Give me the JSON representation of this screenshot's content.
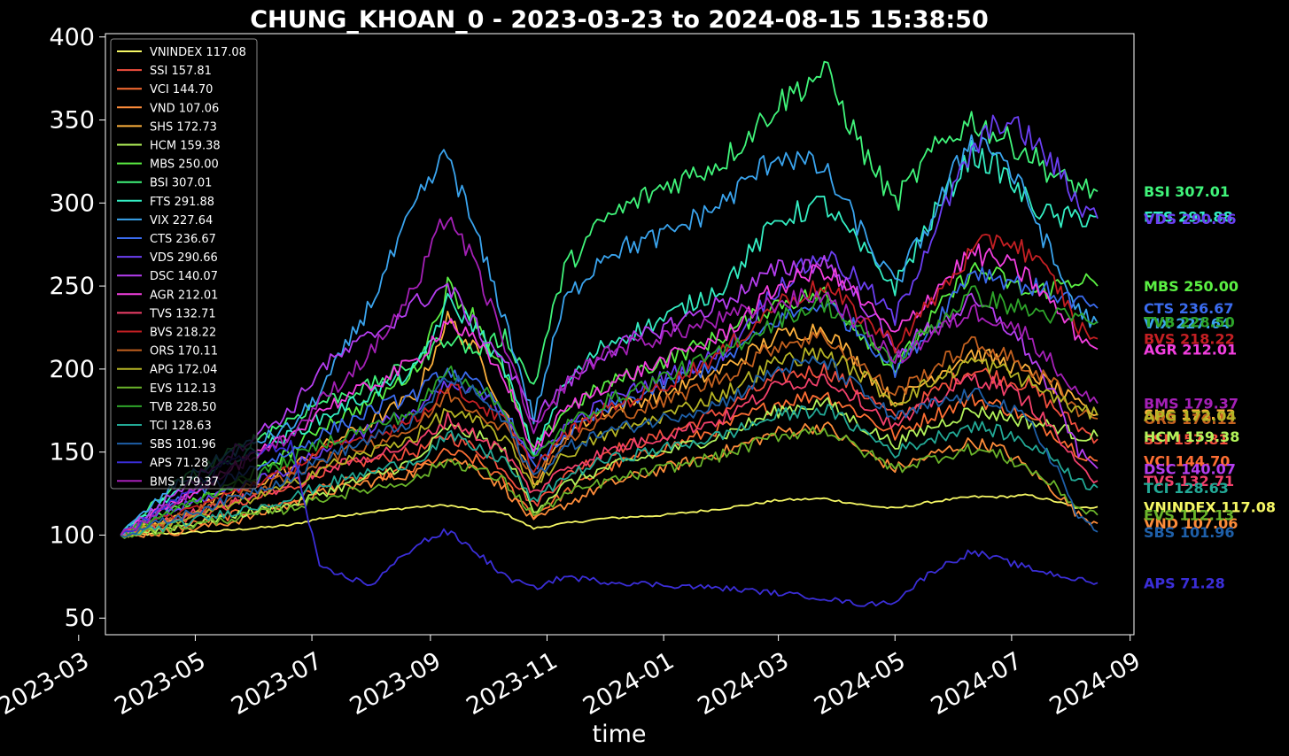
{
  "chart_data": {
    "type": "line",
    "title": "CHUNG_KHOAN_0 - 2023-03-23 to 2024-08-15 15:38:50",
    "xlabel": "time",
    "ylabel": "",
    "ylim": [
      40,
      402
    ],
    "xlim": [
      "2023-03-15",
      "2024-09-03"
    ],
    "x_ticks": [
      "2023-03",
      "2023-05",
      "2023-07",
      "2023-09",
      "2023-11",
      "2024-01",
      "2024-03",
      "2024-05",
      "2024-07",
      "2024-09"
    ],
    "y_ticks": [
      50,
      100,
      150,
      200,
      250,
      300,
      350,
      400
    ],
    "grid": false,
    "legend_position": "top-left",
    "start_date": "2023-03-23",
    "end_date": "2024-08-15",
    "x": [
      "2023-03-23",
      "2023-04-20",
      "2023-05-20",
      "2023-06-20",
      "2023-07-05",
      "2023-08-01",
      "2023-08-25",
      "2023-09-10",
      "2023-09-25",
      "2023-10-10",
      "2023-10-25",
      "2023-11-10",
      "2023-12-01",
      "2024-01-01",
      "2024-02-01",
      "2024-03-01",
      "2024-03-25",
      "2024-04-15",
      "2024-05-01",
      "2024-05-20",
      "2024-06-10",
      "2024-06-25",
      "2024-07-10",
      "2024-07-25",
      "2024-08-05",
      "2024-08-15"
    ],
    "series": [
      {
        "name": "VNINDEX",
        "color": "#f6f865",
        "last": "117.08",
        "values": [
          100,
          101,
          103,
          106,
          110,
          114,
          117,
          118,
          115,
          113,
          104,
          107,
          110,
          112,
          116,
          121,
          122,
          118,
          116,
          120,
          123,
          123,
          124,
          120,
          116,
          117.08
        ]
      },
      {
        "name": "SSI",
        "color": "#f24f3e",
        "last": "157.81",
        "values": [
          100,
          108,
          118,
          128,
          138,
          145,
          150,
          160,
          152,
          140,
          118,
          135,
          150,
          160,
          175,
          195,
          200,
          185,
          170,
          185,
          200,
          195,
          190,
          175,
          165,
          157.81
        ]
      },
      {
        "name": "VCI",
        "color": "#fd6e33",
        "last": "144.70",
        "values": [
          100,
          104,
          112,
          120,
          128,
          135,
          140,
          150,
          145,
          132,
          112,
          125,
          140,
          152,
          165,
          180,
          185,
          172,
          160,
          172,
          182,
          178,
          170,
          160,
          150,
          144.7
        ]
      },
      {
        "name": "VND",
        "color": "#fe8c3a",
        "last": "107.06",
        "values": [
          100,
          102,
          108,
          118,
          125,
          132,
          138,
          148,
          140,
          128,
          108,
          118,
          130,
          140,
          150,
          162,
          166,
          150,
          140,
          148,
          156,
          152,
          140,
          125,
          112,
          107.06
        ]
      },
      {
        "name": "SHS",
        "color": "#fdb13c",
        "last": "172.73",
        "values": [
          100,
          110,
          125,
          140,
          152,
          168,
          185,
          230,
          210,
          175,
          130,
          160,
          175,
          185,
          200,
          220,
          225,
          200,
          180,
          195,
          210,
          205,
          198,
          188,
          178,
          172.73
        ]
      },
      {
        "name": "HCM",
        "color": "#b3f35a",
        "last": "159.38",
        "values": [
          100,
          105,
          112,
          118,
          125,
          135,
          145,
          165,
          160,
          150,
          115,
          130,
          140,
          150,
          160,
          175,
          180,
          165,
          155,
          165,
          175,
          172,
          168,
          165,
          160,
          159.38
        ]
      },
      {
        "name": "MBS",
        "color": "#5bf043",
        "last": "250.00",
        "values": [
          100,
          115,
          130,
          150,
          165,
          180,
          200,
          250,
          230,
          195,
          150,
          175,
          190,
          205,
          220,
          240,
          245,
          220,
          200,
          230,
          260,
          255,
          245,
          250,
          255,
          250.0
        ]
      },
      {
        "name": "BSI",
        "color": "#40f47a",
        "last": "307.01",
        "values": [
          100,
          130,
          150,
          170,
          180,
          190,
          205,
          220,
          210,
          220,
          190,
          260,
          290,
          310,
          325,
          360,
          380,
          330,
          300,
          330,
          350,
          340,
          330,
          315,
          310,
          307.01
        ]
      },
      {
        "name": "FTS",
        "color": "#34eec3",
        "last": "291.88",
        "values": [
          100,
          125,
          145,
          160,
          170,
          185,
          200,
          240,
          225,
          200,
          150,
          190,
          215,
          230,
          250,
          290,
          300,
          270,
          250,
          290,
          330,
          320,
          300,
          290,
          292,
          291.88
        ]
      },
      {
        "name": "VIX",
        "color": "#3aa4ee",
        "last": "227.64",
        "values": [
          100,
          130,
          150,
          165,
          185,
          240,
          300,
          330,
          280,
          230,
          170,
          240,
          270,
          280,
          300,
          330,
          320,
          280,
          250,
          290,
          340,
          330,
          300,
          260,
          235,
          227.64
        ]
      },
      {
        "name": "CTS",
        "color": "#3a6bee",
        "last": "236.67",
        "values": [
          100,
          120,
          135,
          150,
          160,
          175,
          185,
          200,
          190,
          175,
          140,
          160,
          175,
          190,
          205,
          230,
          240,
          220,
          200,
          225,
          260,
          255,
          250,
          245,
          240,
          236.67
        ]
      },
      {
        "name": "VDS",
        "color": "#6b3ff2",
        "last": "290.66",
        "values": [
          100,
          115,
          128,
          140,
          150,
          165,
          175,
          190,
          185,
          175,
          145,
          165,
          180,
          195,
          210,
          250,
          270,
          250,
          230,
          280,
          330,
          350,
          340,
          320,
          300,
          290.66
        ]
      },
      {
        "name": "DSC",
        "color": "#b53ef0",
        "last": "140.07",
        "values": [
          100,
          125,
          150,
          175,
          200,
          220,
          240,
          250,
          225,
          205,
          170,
          190,
          210,
          225,
          240,
          260,
          265,
          240,
          210,
          225,
          240,
          230,
          210,
          180,
          150,
          140.07
        ]
      },
      {
        "name": "AGR",
        "color": "#f33fe0",
        "last": "212.01",
        "values": [
          100,
          120,
          140,
          160,
          175,
          190,
          205,
          230,
          215,
          195,
          150,
          175,
          190,
          205,
          220,
          250,
          260,
          240,
          220,
          245,
          270,
          265,
          255,
          235,
          220,
          212.01
        ]
      },
      {
        "name": "TVS",
        "color": "#f2406b",
        "last": "132.71",
        "values": [
          100,
          110,
          120,
          130,
          138,
          148,
          155,
          170,
          160,
          150,
          125,
          140,
          150,
          160,
          170,
          190,
          195,
          180,
          165,
          180,
          195,
          190,
          180,
          160,
          140,
          132.71
        ]
      },
      {
        "name": "BVS",
        "color": "#c41f23",
        "last": "218.22",
        "values": [
          100,
          112,
          125,
          140,
          150,
          160,
          170,
          190,
          180,
          168,
          140,
          160,
          175,
          190,
          210,
          240,
          250,
          230,
          215,
          240,
          270,
          280,
          270,
          250,
          225,
          218.22
        ]
      },
      {
        "name": "ORS",
        "color": "#c4611f",
        "last": "170.11",
        "values": [
          100,
          110,
          122,
          135,
          145,
          155,
          165,
          185,
          175,
          165,
          135,
          155,
          170,
          180,
          195,
          215,
          220,
          200,
          185,
          200,
          215,
          210,
          200,
          190,
          175,
          170.11
        ]
      },
      {
        "name": "APG",
        "color": "#b5b425",
        "last": "172.04",
        "values": [
          100,
          108,
          118,
          130,
          140,
          150,
          160,
          175,
          168,
          158,
          130,
          148,
          160,
          172,
          185,
          205,
          210,
          195,
          180,
          192,
          205,
          200,
          192,
          182,
          175,
          172.04
        ]
      },
      {
        "name": "EVS",
        "color": "#6ab42a",
        "last": "112.13",
        "values": [
          100,
          104,
          110,
          116,
          122,
          128,
          134,
          145,
          140,
          132,
          112,
          124,
          132,
          140,
          148,
          160,
          164,
          150,
          140,
          146,
          152,
          148,
          140,
          128,
          116,
          112.13
        ]
      },
      {
        "name": "TVB",
        "color": "#2ea52a",
        "last": "228.50",
        "values": [
          100,
          115,
          130,
          145,
          155,
          165,
          175,
          200,
          190,
          175,
          145,
          165,
          180,
          195,
          210,
          230,
          240,
          220,
          205,
          225,
          245,
          240,
          235,
          232,
          230,
          228.5
        ]
      },
      {
        "name": "TCI",
        "color": "#22a996",
        "last": "128.63",
        "values": [
          100,
          106,
          114,
          122,
          130,
          138,
          145,
          160,
          152,
          145,
          120,
          135,
          145,
          152,
          160,
          172,
          176,
          162,
          150,
          158,
          166,
          162,
          155,
          145,
          132,
          128.63
        ]
      },
      {
        "name": "SBS",
        "color": "#1e5fa8",
        "last": "101.96",
        "values": [
          100,
          110,
          122,
          135,
          145,
          158,
          170,
          195,
          185,
          168,
          135,
          152,
          162,
          170,
          180,
          200,
          205,
          185,
          170,
          178,
          185,
          180,
          168,
          140,
          110,
          101.96
        ]
      },
      {
        "name": "APS",
        "color": "#3b2ed8",
        "last": "71.28",
        "values": [
          100,
          120,
          145,
          155,
          80,
          70,
          95,
          102,
          90,
          75,
          68,
          75,
          72,
          70,
          68,
          65,
          62,
          58,
          60,
          78,
          90,
          85,
          80,
          76,
          73,
          71.28
        ]
      },
      {
        "name": "BMS",
        "color": "#a520b7",
        "last": "179.37",
        "values": [
          100,
          120,
          140,
          160,
          180,
          210,
          250,
          295,
          260,
          215,
          160,
          190,
          210,
          220,
          230,
          240,
          245,
          225,
          205,
          220,
          235,
          230,
          220,
          200,
          185,
          179.37
        ]
      }
    ]
  }
}
